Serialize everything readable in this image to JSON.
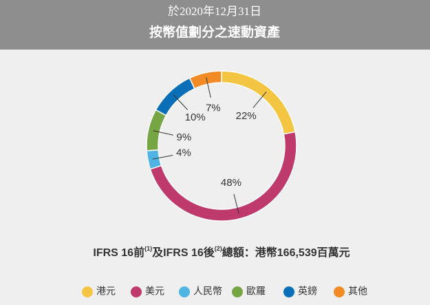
{
  "chart_data": {
    "type": "pie",
    "title": "於2020年12月31日",
    "subtitle": "按幣值劃分之速動資產",
    "categories": [
      "港元",
      "美元",
      "人民幣",
      "歐羅",
      "英鎊",
      "其他"
    ],
    "values": [
      22,
      48,
      4,
      9,
      10,
      7
    ],
    "value_labels": [
      "22%",
      "48%",
      "4%",
      "9%",
      "10%",
      "7%"
    ],
    "colors": [
      "#f4c542",
      "#be3a6c",
      "#4fb4e3",
      "#76a543",
      "#0a6fb7",
      "#f28a26"
    ],
    "note": [
      "IFRS 16前",
      "(1)",
      "及IFRS 16後",
      "(2)",
      "總額：港幣166,539百萬元"
    ],
    "legend": "bottom"
  }
}
